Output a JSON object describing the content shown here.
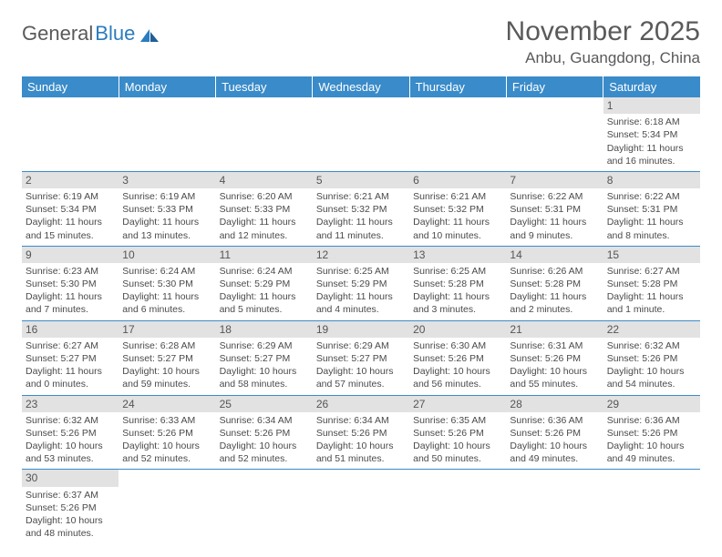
{
  "logo": {
    "text_gray": "General",
    "text_blue": "Blue"
  },
  "header": {
    "month_title": "November 2025",
    "location": "Anbu, Guangdong, China"
  },
  "colors": {
    "header_bg": "#3a8bc9",
    "header_text": "#ffffff",
    "daynum_bg": "#e2e2e2",
    "cell_border": "#3a8bc9",
    "body_text": "#4a4a4a",
    "title_text": "#5a5a5a",
    "logo_blue": "#2b7bbf"
  },
  "weekdays": [
    "Sunday",
    "Monday",
    "Tuesday",
    "Wednesday",
    "Thursday",
    "Friday",
    "Saturday"
  ],
  "layout": {
    "first_day_col": 6,
    "rows": 6,
    "cols": 7
  },
  "days": [
    {
      "n": "1",
      "sunrise": "Sunrise: 6:18 AM",
      "sunset": "Sunset: 5:34 PM",
      "daylight": "Daylight: 11 hours and 16 minutes."
    },
    {
      "n": "2",
      "sunrise": "Sunrise: 6:19 AM",
      "sunset": "Sunset: 5:34 PM",
      "daylight": "Daylight: 11 hours and 15 minutes."
    },
    {
      "n": "3",
      "sunrise": "Sunrise: 6:19 AM",
      "sunset": "Sunset: 5:33 PM",
      "daylight": "Daylight: 11 hours and 13 minutes."
    },
    {
      "n": "4",
      "sunrise": "Sunrise: 6:20 AM",
      "sunset": "Sunset: 5:33 PM",
      "daylight": "Daylight: 11 hours and 12 minutes."
    },
    {
      "n": "5",
      "sunrise": "Sunrise: 6:21 AM",
      "sunset": "Sunset: 5:32 PM",
      "daylight": "Daylight: 11 hours and 11 minutes."
    },
    {
      "n": "6",
      "sunrise": "Sunrise: 6:21 AM",
      "sunset": "Sunset: 5:32 PM",
      "daylight": "Daylight: 11 hours and 10 minutes."
    },
    {
      "n": "7",
      "sunrise": "Sunrise: 6:22 AM",
      "sunset": "Sunset: 5:31 PM",
      "daylight": "Daylight: 11 hours and 9 minutes."
    },
    {
      "n": "8",
      "sunrise": "Sunrise: 6:22 AM",
      "sunset": "Sunset: 5:31 PM",
      "daylight": "Daylight: 11 hours and 8 minutes."
    },
    {
      "n": "9",
      "sunrise": "Sunrise: 6:23 AM",
      "sunset": "Sunset: 5:30 PM",
      "daylight": "Daylight: 11 hours and 7 minutes."
    },
    {
      "n": "10",
      "sunrise": "Sunrise: 6:24 AM",
      "sunset": "Sunset: 5:30 PM",
      "daylight": "Daylight: 11 hours and 6 minutes."
    },
    {
      "n": "11",
      "sunrise": "Sunrise: 6:24 AM",
      "sunset": "Sunset: 5:29 PM",
      "daylight": "Daylight: 11 hours and 5 minutes."
    },
    {
      "n": "12",
      "sunrise": "Sunrise: 6:25 AM",
      "sunset": "Sunset: 5:29 PM",
      "daylight": "Daylight: 11 hours and 4 minutes."
    },
    {
      "n": "13",
      "sunrise": "Sunrise: 6:25 AM",
      "sunset": "Sunset: 5:28 PM",
      "daylight": "Daylight: 11 hours and 3 minutes."
    },
    {
      "n": "14",
      "sunrise": "Sunrise: 6:26 AM",
      "sunset": "Sunset: 5:28 PM",
      "daylight": "Daylight: 11 hours and 2 minutes."
    },
    {
      "n": "15",
      "sunrise": "Sunrise: 6:27 AM",
      "sunset": "Sunset: 5:28 PM",
      "daylight": "Daylight: 11 hours and 1 minute."
    },
    {
      "n": "16",
      "sunrise": "Sunrise: 6:27 AM",
      "sunset": "Sunset: 5:27 PM",
      "daylight": "Daylight: 11 hours and 0 minutes."
    },
    {
      "n": "17",
      "sunrise": "Sunrise: 6:28 AM",
      "sunset": "Sunset: 5:27 PM",
      "daylight": "Daylight: 10 hours and 59 minutes."
    },
    {
      "n": "18",
      "sunrise": "Sunrise: 6:29 AM",
      "sunset": "Sunset: 5:27 PM",
      "daylight": "Daylight: 10 hours and 58 minutes."
    },
    {
      "n": "19",
      "sunrise": "Sunrise: 6:29 AM",
      "sunset": "Sunset: 5:27 PM",
      "daylight": "Daylight: 10 hours and 57 minutes."
    },
    {
      "n": "20",
      "sunrise": "Sunrise: 6:30 AM",
      "sunset": "Sunset: 5:26 PM",
      "daylight": "Daylight: 10 hours and 56 minutes."
    },
    {
      "n": "21",
      "sunrise": "Sunrise: 6:31 AM",
      "sunset": "Sunset: 5:26 PM",
      "daylight": "Daylight: 10 hours and 55 minutes."
    },
    {
      "n": "22",
      "sunrise": "Sunrise: 6:32 AM",
      "sunset": "Sunset: 5:26 PM",
      "daylight": "Daylight: 10 hours and 54 minutes."
    },
    {
      "n": "23",
      "sunrise": "Sunrise: 6:32 AM",
      "sunset": "Sunset: 5:26 PM",
      "daylight": "Daylight: 10 hours and 53 minutes."
    },
    {
      "n": "24",
      "sunrise": "Sunrise: 6:33 AM",
      "sunset": "Sunset: 5:26 PM",
      "daylight": "Daylight: 10 hours and 52 minutes."
    },
    {
      "n": "25",
      "sunrise": "Sunrise: 6:34 AM",
      "sunset": "Sunset: 5:26 PM",
      "daylight": "Daylight: 10 hours and 52 minutes."
    },
    {
      "n": "26",
      "sunrise": "Sunrise: 6:34 AM",
      "sunset": "Sunset: 5:26 PM",
      "daylight": "Daylight: 10 hours and 51 minutes."
    },
    {
      "n": "27",
      "sunrise": "Sunrise: 6:35 AM",
      "sunset": "Sunset: 5:26 PM",
      "daylight": "Daylight: 10 hours and 50 minutes."
    },
    {
      "n": "28",
      "sunrise": "Sunrise: 6:36 AM",
      "sunset": "Sunset: 5:26 PM",
      "daylight": "Daylight: 10 hours and 49 minutes."
    },
    {
      "n": "29",
      "sunrise": "Sunrise: 6:36 AM",
      "sunset": "Sunset: 5:26 PM",
      "daylight": "Daylight: 10 hours and 49 minutes."
    },
    {
      "n": "30",
      "sunrise": "Sunrise: 6:37 AM",
      "sunset": "Sunset: 5:26 PM",
      "daylight": "Daylight: 10 hours and 48 minutes."
    }
  ]
}
